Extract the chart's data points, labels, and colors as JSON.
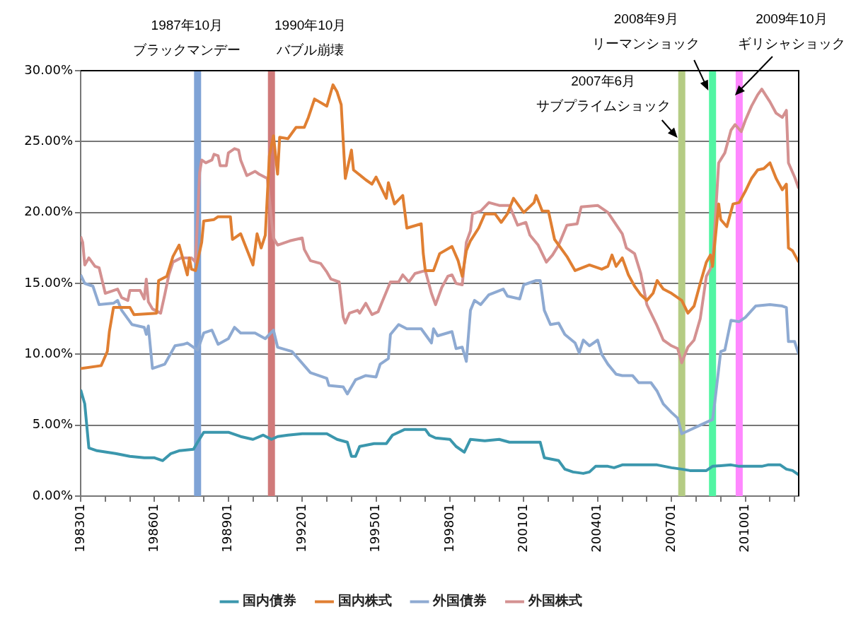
{
  "chart_data": {
    "type": "line",
    "xlim": [
      "1983-01",
      "2012-03"
    ],
    "xticks": [
      {
        "value": "1983-01",
        "label": "198301"
      },
      {
        "value": "1984-01",
        "label": null
      },
      {
        "value": "1985-01",
        "label": null
      },
      {
        "value": "1986-01",
        "label": "198601"
      },
      {
        "value": "1987-01",
        "label": null
      },
      {
        "value": "1988-01",
        "label": null
      },
      {
        "value": "1989-01",
        "label": "198901"
      },
      {
        "value": "1990-01",
        "label": null
      },
      {
        "value": "1991-01",
        "label": null
      },
      {
        "value": "1992-01",
        "label": "199201"
      },
      {
        "value": "1993-01",
        "label": null
      },
      {
        "value": "1994-01",
        "label": null
      },
      {
        "value": "1995-01",
        "label": "199501"
      },
      {
        "value": "1996-01",
        "label": null
      },
      {
        "value": "1997-01",
        "label": null
      },
      {
        "value": "1998-01",
        "label": "199801"
      },
      {
        "value": "1999-01",
        "label": null
      },
      {
        "value": "2000-01",
        "label": null
      },
      {
        "value": "2001-01",
        "label": "200101"
      },
      {
        "value": "2002-01",
        "label": null
      },
      {
        "value": "2003-01",
        "label": null
      },
      {
        "value": "2004-01",
        "label": "200401"
      },
      {
        "value": "2005-01",
        "label": null
      },
      {
        "value": "2006-01",
        "label": null
      },
      {
        "value": "2007-01",
        "label": "200701"
      },
      {
        "value": "2008-01",
        "label": null
      },
      {
        "value": "2009-01",
        "label": null
      },
      {
        "value": "2010-01",
        "label": "201001"
      },
      {
        "value": "2011-01",
        "label": null
      },
      {
        "value": "2012-01",
        "label": null
      }
    ],
    "ylim": [
      0,
      30
    ],
    "yticks": [
      {
        "value": 0,
        "label": "0.00%"
      },
      {
        "value": 5,
        "label": "5.00%"
      },
      {
        "value": 10,
        "label": "10.00%"
      },
      {
        "value": 15,
        "label": "15.00%"
      },
      {
        "value": 20,
        "label": "20.00%"
      },
      {
        "value": 25,
        "label": "25.00%"
      },
      {
        "value": 30,
        "label": "30.00%"
      }
    ],
    "grid": "y",
    "legend": "bottom",
    "series": [
      {
        "name": "国内債券",
        "color": "#3b97ad",
        "x": [
          "1983-01",
          "1983-03",
          "1983-05",
          "1983-09",
          "1984-06",
          "1985-01",
          "1985-08",
          "1986-01",
          "1986-05",
          "1986-09",
          "1987-01",
          "1987-08",
          "1987-10",
          "1988-01",
          "1989-01",
          "1989-07",
          "1990-01",
          "1990-06",
          "1990-10",
          "1991-01",
          "1991-06",
          "1992-01",
          "1993-01",
          "1993-06",
          "1993-11",
          "1994-01",
          "1994-03",
          "1994-05",
          "1994-12",
          "1995-06",
          "1995-09",
          "1996-03",
          "1997-01",
          "1997-03",
          "1997-06",
          "1998-01",
          "1998-04",
          "1998-08",
          "1998-11",
          "1999-06",
          "2000-01",
          "2000-06",
          "2001-01",
          "2001-09",
          "2001-11",
          "2002-06",
          "2002-09",
          "2003-01",
          "2003-06",
          "2003-09",
          "2003-12",
          "2004-06",
          "2004-09",
          "2005-01",
          "2006-06",
          "2007-01",
          "2007-06",
          "2007-10",
          "2008-06",
          "2008-09",
          "2009-06",
          "2009-10",
          "2010-09",
          "2010-12",
          "2011-06",
          "2011-09",
          "2011-12",
          "2012-03"
        ],
        "values": [
          7.5,
          6.5,
          3.4,
          3.2,
          3.0,
          2.8,
          2.7,
          2.7,
          2.5,
          3.0,
          3.2,
          3.3,
          3.8,
          4.5,
          4.5,
          4.2,
          4.0,
          4.3,
          4.0,
          4.2,
          4.3,
          4.4,
          4.4,
          4.0,
          3.8,
          2.8,
          2.8,
          3.5,
          3.7,
          3.7,
          4.3,
          4.7,
          4.7,
          4.3,
          4.1,
          4.0,
          3.5,
          3.1,
          4.0,
          3.9,
          4.0,
          3.8,
          3.8,
          3.8,
          2.7,
          2.5,
          1.9,
          1.7,
          1.6,
          1.7,
          2.1,
          2.1,
          2.0,
          2.2,
          2.2,
          2.0,
          1.9,
          1.8,
          1.8,
          2.1,
          2.2,
          2.1,
          2.1,
          2.2,
          2.2,
          1.9,
          1.8,
          1.5
        ]
      },
      {
        "name": "国内株式",
        "color": "#e07f32",
        "x": [
          "1983-01",
          "1983-11",
          "1984-02",
          "1984-03",
          "1984-05",
          "1985-01",
          "1985-03",
          "1986-02",
          "1986-03",
          "1986-07",
          "1986-10",
          "1987-01",
          "1987-05",
          "1987-06",
          "1987-07",
          "1987-09",
          "1987-12",
          "1988-01",
          "1988-06",
          "1988-08",
          "1989-02",
          "1989-03",
          "1989-07",
          "1990-01",
          "1990-03",
          "1990-05",
          "1990-07",
          "1990-09",
          "1990-11",
          "1991-01",
          "1991-02",
          "1991-06",
          "1991-10",
          "1992-02",
          "1992-04",
          "1992-07",
          "1993-01",
          "1993-04",
          "1993-06",
          "1993-08",
          "1993-10",
          "1994-01",
          "1994-02",
          "1994-08",
          "1994-11",
          "1995-01",
          "1995-06",
          "1995-07",
          "1995-10",
          "1996-02",
          "1996-04",
          "1996-11",
          "1996-12",
          "1997-01",
          "1997-05",
          "1997-08",
          "1998-02",
          "1998-05",
          "1998-07",
          "1998-09",
          "1998-11",
          "1999-03",
          "1999-06",
          "1999-11",
          "2000-02",
          "2000-05",
          "2000-08",
          "2001-01",
          "2001-06",
          "2001-07",
          "2001-10",
          "2002-01",
          "2002-04",
          "2002-10",
          "2003-02",
          "2003-09",
          "2004-03",
          "2004-06",
          "2004-08",
          "2004-10",
          "2005-01",
          "2005-04",
          "2005-07",
          "2005-10",
          "2006-01",
          "2006-04",
          "2006-06",
          "2006-09",
          "2007-01",
          "2007-06",
          "2007-09",
          "2007-12",
          "2008-03",
          "2008-06",
          "2008-08",
          "2008-09",
          "2008-12",
          "2009-01",
          "2009-04",
          "2009-07",
          "2009-10",
          "2010-01",
          "2010-04",
          "2010-07",
          "2010-10",
          "2011-01",
          "2011-04",
          "2011-07",
          "2011-09",
          "2011-10",
          "2011-12",
          "2012-03"
        ],
        "values": [
          9.0,
          9.2,
          10.2,
          11.6,
          13.3,
          13.3,
          12.8,
          12.9,
          15.2,
          15.5,
          16.9,
          17.7,
          15.6,
          16.8,
          16.0,
          15.9,
          17.9,
          19.4,
          19.5,
          19.7,
          19.7,
          18.1,
          18.5,
          16.3,
          18.5,
          17.5,
          18.4,
          24.0,
          25.4,
          22.7,
          25.3,
          25.2,
          26.0,
          26.0,
          26.7,
          28.0,
          27.5,
          29.0,
          28.5,
          27.6,
          22.4,
          24.4,
          23.0,
          22.3,
          22.0,
          22.5,
          21.0,
          22.1,
          20.6,
          21.2,
          18.9,
          19.2,
          17.1,
          15.9,
          15.9,
          17.1,
          17.6,
          16.6,
          15.5,
          17.3,
          18.0,
          18.9,
          19.9,
          19.9,
          19.3,
          19.9,
          21.0,
          20.0,
          20.7,
          21.2,
          20.1,
          20.1,
          18.1,
          16.9,
          15.9,
          16.3,
          16.0,
          16.2,
          17.0,
          16.2,
          16.8,
          15.6,
          14.8,
          14.2,
          13.8,
          14.3,
          15.2,
          14.6,
          14.3,
          13.8,
          12.9,
          13.4,
          15.0,
          16.5,
          17.0,
          16.2,
          20.6,
          19.5,
          19.0,
          20.6,
          20.7,
          21.5,
          22.4,
          23.0,
          23.1,
          23.5,
          22.4,
          21.6,
          22.0,
          17.5,
          17.3,
          16.5
        ]
      },
      {
        "name": "外国債券",
        "color": "#8eaad2",
        "x": [
          "1983-01",
          "1983-03",
          "1983-07",
          "1983-10",
          "1984-05",
          "1984-07",
          "1984-09",
          "1985-02",
          "1985-08",
          "1985-09",
          "1985-10",
          "1985-12",
          "1986-06",
          "1986-11",
          "1987-03",
          "1987-05",
          "1987-10",
          "1988-01",
          "1988-05",
          "1988-08",
          "1989-01",
          "1989-04",
          "1989-07",
          "1990-02",
          "1990-07",
          "1990-11",
          "1991-01",
          "1991-08",
          "1992-05",
          "1993-01",
          "1993-02",
          "1993-09",
          "1993-11",
          "1994-03",
          "1994-08",
          "1995-01",
          "1995-03",
          "1995-07",
          "1995-08",
          "1995-12",
          "1996-04",
          "1996-11",
          "1997-04",
          "1997-05",
          "1997-07",
          "1998-02",
          "1998-04",
          "1998-07",
          "1998-09",
          "1998-11",
          "1999-01",
          "1999-04",
          "1999-08",
          "2000-03",
          "2000-05",
          "2000-11",
          "2001-01",
          "2001-07",
          "2001-09",
          "2001-11",
          "2002-02",
          "2002-06",
          "2002-09",
          "2003-02",
          "2003-04",
          "2003-06",
          "2003-09",
          "2004-01",
          "2004-03",
          "2004-06",
          "2004-10",
          "2005-01",
          "2005-06",
          "2005-09",
          "2006-03",
          "2006-06",
          "2006-09",
          "2007-01",
          "2007-04",
          "2007-06",
          "2007-09",
          "2008-03",
          "2008-09",
          "2008-10",
          "2009-01",
          "2009-03",
          "2009-06",
          "2009-10",
          "2010-01",
          "2010-06",
          "2011-01",
          "2011-07",
          "2011-09",
          "2011-10",
          "2012-01",
          "2012-03"
        ],
        "values": [
          15.6,
          15.0,
          14.8,
          13.5,
          13.6,
          13.8,
          13.1,
          12.1,
          11.9,
          11.4,
          12.0,
          9.0,
          9.3,
          10.6,
          10.7,
          10.8,
          10.3,
          11.5,
          11.7,
          10.7,
          11.1,
          11.9,
          11.5,
          11.5,
          11.1,
          11.7,
          10.5,
          10.2,
          8.7,
          8.3,
          7.8,
          7.7,
          7.2,
          8.2,
          8.5,
          8.4,
          9.3,
          9.7,
          11.4,
          12.1,
          11.8,
          11.8,
          10.8,
          11.8,
          11.3,
          11.6,
          10.4,
          10.5,
          9.5,
          13.1,
          13.8,
          13.5,
          14.2,
          14.6,
          14.1,
          13.9,
          14.9,
          15.2,
          15.2,
          13.1,
          12.1,
          12.2,
          11.4,
          10.8,
          10.1,
          11.0,
          10.6,
          11.0,
          10.0,
          9.3,
          8.6,
          8.5,
          8.5,
          8.0,
          8.0,
          7.4,
          6.5,
          5.9,
          5.5,
          4.4,
          4.6,
          5.0,
          5.4,
          6.5,
          10.2,
          10.3,
          12.4,
          12.3,
          12.6,
          13.4,
          13.5,
          13.4,
          13.3,
          10.9,
          10.9,
          10.0
        ]
      },
      {
        "name": "外国株式",
        "color": "#d49191",
        "x": [
          "1983-01",
          "1983-02",
          "1983-03",
          "1983-05",
          "1983-08",
          "1983-10",
          "1984-01",
          "1984-05",
          "1984-07",
          "1984-09",
          "1984-12",
          "1985-01",
          "1985-06",
          "1985-08",
          "1985-09",
          "1985-10",
          "1985-12",
          "1986-04",
          "1986-06",
          "1986-08",
          "1986-10",
          "1987-02",
          "1987-07",
          "1987-09",
          "1987-11",
          "1987-12",
          "1988-02",
          "1988-05",
          "1988-06",
          "1988-08",
          "1988-09",
          "1988-12",
          "1989-01",
          "1989-04",
          "1989-06",
          "1989-07",
          "1989-10",
          "1990-02",
          "1990-04",
          "1990-08",
          "1990-10",
          "1990-11",
          "1991-01",
          "1991-07",
          "1992-01",
          "1992-02",
          "1992-05",
          "1992-10",
          "1993-01",
          "1993-03",
          "1993-07",
          "1993-09",
          "1993-10",
          "1993-12",
          "1994-04",
          "1994-05",
          "1994-08",
          "1994-11",
          "1995-02",
          "1995-04",
          "1995-08",
          "1995-12",
          "1996-02",
          "1996-05",
          "1996-08",
          "1997-01",
          "1997-04",
          "1997-06",
          "1997-09",
          "1997-12",
          "1998-02",
          "1998-04",
          "1998-07",
          "1998-09",
          "1998-11",
          "1998-12",
          "1999-04",
          "1999-08",
          "2000-01",
          "2000-06",
          "2000-10",
          "2001-02",
          "2001-04",
          "2001-08",
          "2001-12",
          "2002-03",
          "2002-06",
          "2002-10",
          "2003-03",
          "2003-05",
          "2004-01",
          "2004-06",
          "2005-01",
          "2005-03",
          "2005-07",
          "2005-10",
          "2006-01",
          "2006-06",
          "2006-09",
          "2007-01",
          "2007-04",
          "2007-06",
          "2007-09",
          "2007-12",
          "2008-03",
          "2008-06",
          "2008-09",
          "2008-12",
          "2009-03",
          "2009-06",
          "2009-08",
          "2009-11",
          "2010-01",
          "2010-04",
          "2010-07",
          "2010-09",
          "2011-01",
          "2011-04",
          "2011-07",
          "2011-09",
          "2011-10",
          "2012-01",
          "2012-03"
        ],
        "values": [
          18.3,
          17.9,
          16.3,
          16.8,
          16.2,
          16.1,
          14.3,
          14.5,
          14.6,
          14.0,
          13.8,
          14.5,
          14.5,
          13.9,
          15.3,
          13.7,
          13.2,
          12.9,
          14.2,
          15.6,
          16.5,
          16.8,
          16.8,
          16.5,
          22.8,
          23.7,
          23.5,
          23.7,
          24.1,
          24.0,
          23.3,
          23.3,
          24.2,
          24.5,
          24.4,
          23.7,
          22.6,
          22.9,
          22.7,
          22.4,
          19.5,
          18.2,
          17.7,
          18.0,
          18.2,
          17.4,
          16.6,
          16.4,
          15.8,
          15.3,
          15.1,
          12.6,
          12.2,
          12.9,
          13.1,
          12.9,
          13.6,
          12.8,
          13.0,
          13.7,
          15.1,
          15.1,
          15.6,
          15.1,
          15.7,
          15.9,
          14.3,
          13.5,
          14.7,
          15.5,
          15.6,
          15.0,
          14.9,
          17.9,
          18.7,
          19.9,
          20.1,
          20.7,
          20.5,
          20.5,
          19.1,
          19.3,
          18.4,
          17.7,
          16.5,
          17.0,
          17.7,
          19.1,
          19.2,
          20.4,
          20.5,
          20.0,
          18.5,
          17.5,
          17.1,
          15.7,
          13.5,
          12.0,
          11.0,
          10.6,
          10.4,
          9.4,
          10.5,
          11.0,
          12.5,
          15.5,
          16.3,
          23.5,
          24.2,
          25.8,
          26.2,
          25.7,
          26.5,
          27.5,
          28.3,
          28.7,
          27.8,
          27.0,
          26.7,
          27.2,
          23.5,
          22.5,
          21.7
        ]
      }
    ],
    "ref_lines": [
      {
        "axis": "x",
        "value": "1987-10",
        "label": "1987年10月ブラックマンデー",
        "color": "#7fa3d6"
      },
      {
        "axis": "x",
        "value": "1990-10",
        "label": "1990年10月バブル崩壊",
        "color": "#d07a7a"
      },
      {
        "axis": "x",
        "value": "2007-06",
        "label": "2007年6月サブプライムショック",
        "color": "#b5cc84"
      },
      {
        "axis": "x",
        "value": "2008-09",
        "label": "2008年9月リーマンショック",
        "color": "#52f5a3"
      },
      {
        "axis": "x",
        "value": "2009-10",
        "label": "2009年10月ギリシャショック",
        "color": "#ff88ff"
      }
    ]
  }
}
